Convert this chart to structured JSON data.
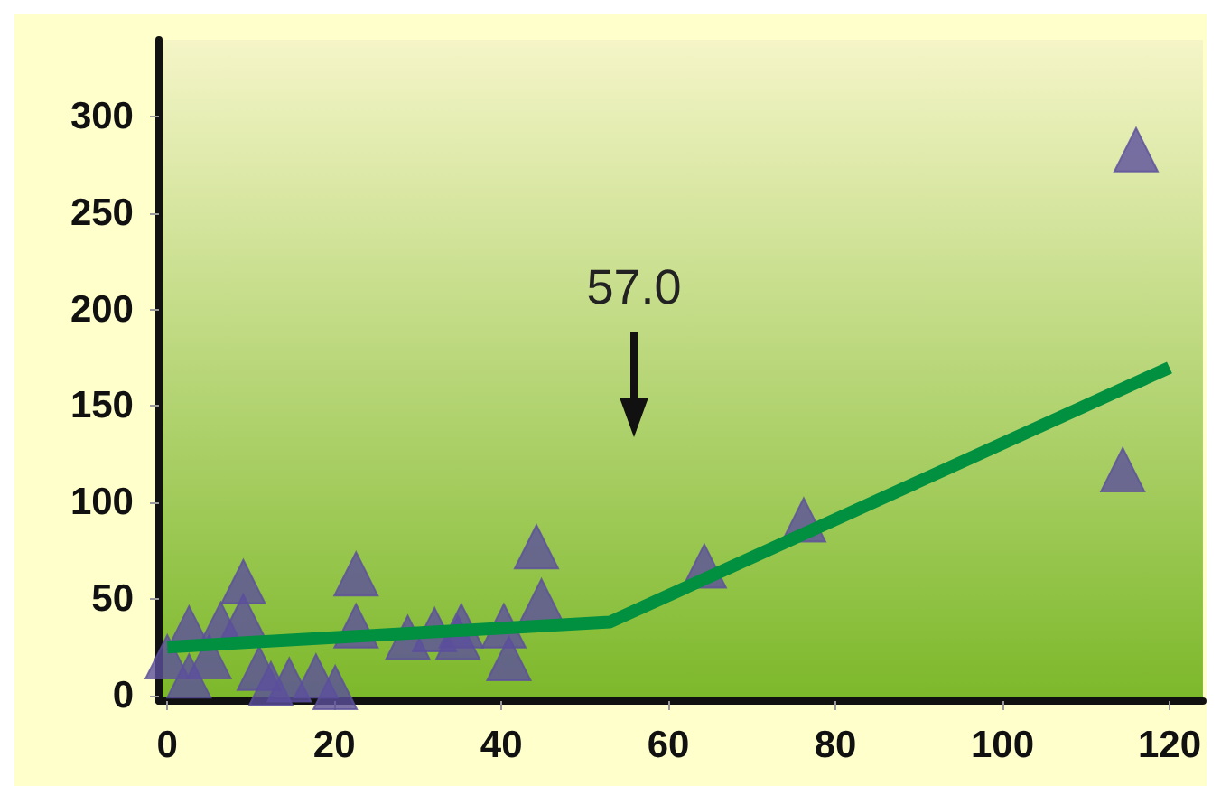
{
  "chart_data": {
    "type": "scatter",
    "xlim": [
      -1,
      124
    ],
    "xticks": [
      0,
      20,
      40,
      60,
      80,
      100,
      120
    ],
    "ylim": [
      -3,
      340
    ],
    "yticks": [
      0,
      50,
      100,
      150,
      200,
      250,
      300
    ],
    "grid": false,
    "series": [
      {
        "color": "#5b4f9c",
        "marker": "triangle",
        "x": [
          0,
          2.6,
          2.6,
          5,
          6.4,
          9.1,
          9.1,
          11,
          12.4,
          14.6,
          17.8,
          20.1,
          22.6,
          22.6,
          28.8,
          32,
          34.8,
          35.2,
          40.3,
          40.9,
          44.2,
          44.8,
          64.3,
          76.2,
          114.4,
          116
        ],
        "values": [
          20,
          35,
          10,
          20,
          37,
          59,
          41,
          14,
          6,
          8,
          10,
          4,
          63,
          36,
          30,
          34,
          30,
          36,
          36,
          19,
          77,
          49,
          67,
          91,
          117,
          283
        ]
      },
      {
        "type": "line",
        "color": "#009040",
        "marker": "none",
        "x": [
          0,
          53,
          120
        ],
        "values": [
          25,
          38,
          170
        ]
      }
    ],
    "annotations": [
      "57.0"
    ]
  }
}
